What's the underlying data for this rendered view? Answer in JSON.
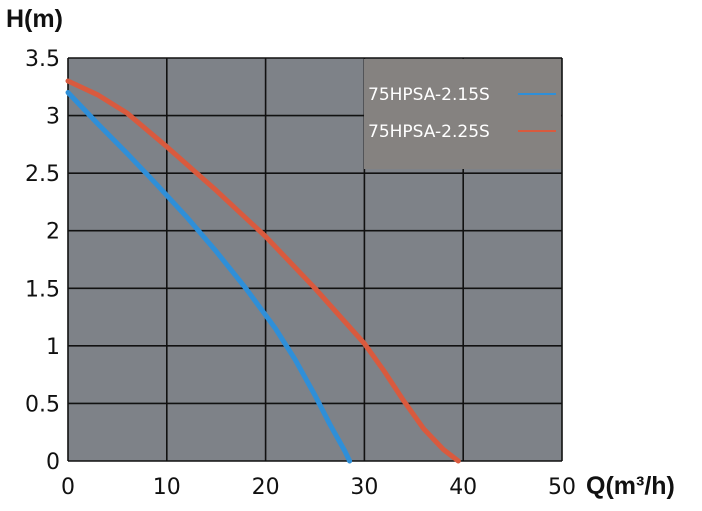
{
  "chart_data": {
    "type": "line",
    "xlabel": "Q(m³/h)",
    "ylabel": "H(m)",
    "xlim": [
      0,
      50
    ],
    "ylim": [
      0,
      3.5
    ],
    "x_ticks": [
      "0",
      "10",
      "20",
      "30",
      "40",
      "50"
    ],
    "y_ticks": [
      "0",
      "0.5",
      "1",
      "1.5",
      "2",
      "2.5",
      "3",
      "3.5"
    ],
    "x_tick_values": [
      0,
      10,
      20,
      30,
      40,
      50
    ],
    "y_tick_values": [
      0,
      0.5,
      1,
      1.5,
      2,
      2.5,
      3,
      3.5
    ],
    "grid": true,
    "legend_position": "top-right",
    "plot_background": "#7e8288",
    "legend_background": "#858280",
    "series": [
      {
        "name": "75HPSA-2.15S",
        "color": "#2f8fd8",
        "x": [
          0,
          3,
          6,
          9,
          12,
          15,
          18,
          21,
          23,
          25,
          26.5,
          28,
          28.5
        ],
        "y": [
          3.2,
          2.93,
          2.67,
          2.4,
          2.12,
          1.82,
          1.5,
          1.15,
          0.88,
          0.57,
          0.32,
          0.09,
          0
        ]
      },
      {
        "name": "75HPSA-2.25S",
        "color": "#d95a3e",
        "x": [
          0,
          3,
          6,
          10,
          15,
          20,
          25,
          30,
          32,
          34,
          36,
          38,
          39.5
        ],
        "y": [
          3.3,
          3.18,
          3.02,
          2.73,
          2.35,
          1.95,
          1.5,
          1.02,
          0.78,
          0.52,
          0.28,
          0.1,
          0
        ]
      }
    ]
  }
}
